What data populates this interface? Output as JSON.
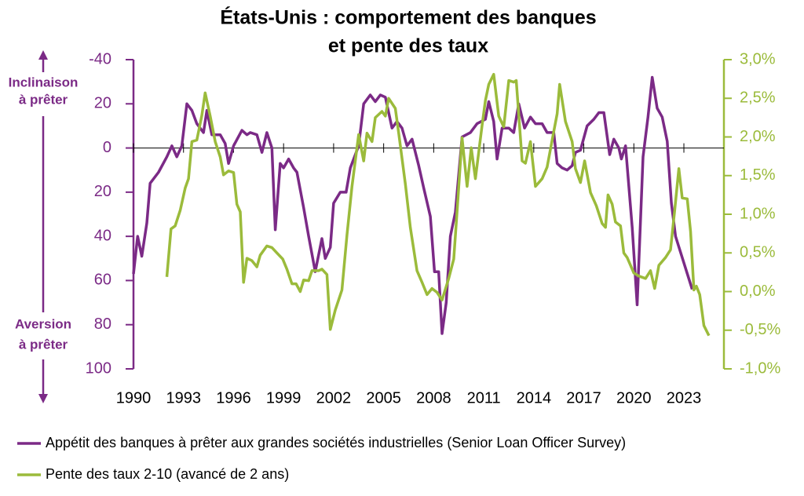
{
  "chart_data": {
    "type": "line",
    "title": [
      "États-Unis : comportement des banques",
      "et pente des taux"
    ],
    "annotations": [
      [
        "Inclinaison",
        "à prêter"
      ],
      [
        "Aversion",
        "à prêter"
      ]
    ],
    "xlim": [
      1990,
      2025.4
    ],
    "xticks": [
      1990,
      1993,
      1996,
      1999,
      2002,
      2005,
      2008,
      2011,
      2014,
      2017,
      2020,
      2023
    ],
    "ylim": [
      -40,
      100
    ],
    "y_inverted": true,
    "yticks": [
      -40,
      {
        "value": -20,
        "label": "20"
      },
      0,
      20,
      40,
      60,
      80,
      100
    ],
    "y_color": "#7b2a86",
    "y2lim": [
      -1.0,
      3.0
    ],
    "y2ticks": [
      {
        "value": -1.0,
        "label": "-1,0%"
      },
      {
        "value": -0.5,
        "label": "-0,5%"
      },
      {
        "value": 0.0,
        "label": "0,0%"
      },
      {
        "value": 0.5,
        "label": "0,5%"
      },
      {
        "value": 1.0,
        "label": "1,0%"
      },
      {
        "value": 1.5,
        "label": "1,5%"
      },
      {
        "value": 2.0,
        "label": "2,0%"
      },
      {
        "value": 2.5,
        "label": "2,5%"
      },
      {
        "value": 3.0,
        "label": "3,0%"
      }
    ],
    "y2_color": "#9bbb3b",
    "zero_line": true,
    "series": [
      {
        "name": "Appétit des banques à prêter aux grandes sociétés industrielles (Senior Loan Officer Survey)",
        "color": "#7b2a86",
        "x": [
          1990.0,
          1990.25,
          1990.5,
          1990.8,
          1991.0,
          1991.5,
          1992.0,
          1992.3,
          1992.6,
          1992.9,
          1993.2,
          1993.5,
          1993.8,
          1994.2,
          1994.4,
          1994.7,
          1995.2,
          1995.5,
          1995.7,
          1996.0,
          1996.5,
          1996.8,
          1997.0,
          1997.4,
          1997.7,
          1998.0,
          1998.3,
          1998.5,
          1998.8,
          1999.0,
          1999.3,
          1999.6,
          1999.8,
          2000.2,
          2000.5,
          2000.9,
          2001.3,
          2001.5,
          2001.8,
          2002.0,
          2002.4,
          2002.75,
          2003.0,
          2003.5,
          2003.8,
          2004.2,
          2004.5,
          2004.8,
          2005.1,
          2005.5,
          2005.8,
          2006.1,
          2006.4,
          2006.7,
          2007.1,
          2007.4,
          2007.8,
          2008.05,
          2008.3,
          2008.5,
          2008.75,
          2009.0,
          2009.3,
          2009.7,
          2010.2,
          2010.6,
          2011.1,
          2011.3,
          2011.6,
          2011.8,
          2012.1,
          2012.5,
          2012.8,
          2013.1,
          2013.45,
          2013.8,
          2014.1,
          2014.5,
          2014.8,
          2015.2,
          2015.4,
          2015.7,
          2016.0,
          2016.3,
          2016.5,
          2016.8,
          2017.2,
          2017.6,
          2017.9,
          2018.2,
          2018.55,
          2018.8,
          2019.1,
          2019.25,
          2019.5,
          2019.9,
          2020.2,
          2020.55,
          2020.85,
          2021.1,
          2021.4,
          2021.7,
          2022.0,
          2022.25,
          2022.5,
          2023.5
        ],
        "values": [
          57,
          40,
          49,
          34,
          16,
          11,
          4,
          -1,
          4,
          -1,
          -20,
          -17,
          -11,
          -7,
          -17,
          -6,
          -6,
          -2,
          7,
          -1,
          -8,
          -6,
          -7,
          -6,
          2,
          -7,
          0,
          37,
          7,
          9,
          5,
          9,
          11,
          27,
          40,
          56,
          41,
          50,
          45,
          25,
          20,
          20,
          9,
          -1,
          -20,
          -24,
          -21,
          -24,
          -23,
          -9,
          -12,
          -9,
          -1,
          -4,
          8,
          18,
          31,
          56,
          56,
          84,
          70,
          40,
          29,
          -5,
          -7,
          -11,
          -13,
          -21,
          -12,
          5,
          -9,
          -9,
          -7,
          -20,
          -9,
          -14,
          -11,
          -11,
          -7,
          -7,
          7,
          9,
          10,
          8,
          2,
          1,
          -10,
          -13,
          -16,
          -16,
          3,
          -4,
          0,
          5,
          -1,
          36,
          71,
          4,
          -14,
          -32,
          -18,
          -14,
          -3,
          25,
          40,
          64
        ]
      },
      {
        "name": "Pente des taux 2-10 (avancé de 2 ans)",
        "color": "#9bbb3b",
        "axis": "y2",
        "x": [
          1992.0,
          1992.25,
          1992.5,
          1992.8,
          1993.1,
          1993.3,
          1993.5,
          1993.8,
          1994.1,
          1994.3,
          1994.6,
          1994.9,
          1995.2,
          1995.4,
          1995.7,
          1996.0,
          1996.2,
          1996.4,
          1996.6,
          1996.8,
          1997.1,
          1997.4,
          1997.6,
          1998.0,
          1998.3,
          1998.6,
          1998.95,
          1999.2,
          1999.5,
          1999.75,
          2000.0,
          2000.2,
          2000.5,
          2000.7,
          2001.1,
          2001.3,
          2001.6,
          2001.8,
          2002.1,
          2002.5,
          2002.8,
          2003.1,
          2003.5,
          2003.8,
          2004.0,
          2004.3,
          2004.5,
          2004.9,
          2005.1,
          2005.3,
          2005.7,
          2005.9,
          2006.3,
          2006.6,
          2007.0,
          2007.3,
          2007.6,
          2007.9,
          2008.2,
          2008.5,
          2008.9,
          2009.2,
          2009.4,
          2009.7,
          2010.0,
          2010.25,
          2010.5,
          2010.9,
          2011.1,
          2011.3,
          2011.6,
          2011.9,
          2012.2,
          2012.5,
          2012.8,
          2012.95,
          2013.3,
          2013.5,
          2013.8,
          2014.1,
          2014.5,
          2014.8,
          2015.2,
          2015.4,
          2015.55,
          2015.9,
          2016.3,
          2016.5,
          2016.8,
          2017.05,
          2017.4,
          2017.75,
          2018.1,
          2018.3,
          2018.45,
          2018.7,
          2018.9,
          2019.2,
          2019.4,
          2019.6,
          2020.0,
          2020.3,
          2020.7,
          2021.0,
          2021.25,
          2021.5,
          2021.9,
          2022.2,
          2022.45,
          2022.7,
          2022.9,
          2023.2,
          2023.4,
          2023.6,
          2023.75,
          2023.95,
          2024.2,
          2024.5
        ],
        "values": [
          0.19,
          0.81,
          0.85,
          1.05,
          1.34,
          1.46,
          1.94,
          1.96,
          2.28,
          2.57,
          2.27,
          1.94,
          1.74,
          1.51,
          1.56,
          1.54,
          1.13,
          1.03,
          0.12,
          0.43,
          0.4,
          0.32,
          0.47,
          0.59,
          0.57,
          0.5,
          0.42,
          0.29,
          0.1,
          0.1,
          0.0,
          0.15,
          0.14,
          0.27,
          0.27,
          0.29,
          0.22,
          -0.49,
          -0.24,
          0.02,
          0.73,
          1.36,
          2.03,
          1.69,
          2.05,
          1.94,
          2.25,
          2.33,
          2.27,
          2.5,
          2.37,
          2.05,
          1.39,
          0.83,
          0.27,
          0.12,
          -0.04,
          0.04,
          -0.01,
          -0.11,
          0.17,
          0.42,
          1.03,
          1.99,
          1.36,
          1.86,
          1.46,
          2.15,
          2.47,
          2.68,
          2.81,
          2.27,
          2.13,
          2.73,
          2.71,
          2.73,
          1.69,
          1.66,
          1.94,
          1.36,
          1.46,
          1.61,
          2.07,
          2.3,
          2.68,
          2.2,
          1.94,
          1.59,
          1.41,
          1.69,
          1.28,
          1.11,
          0.88,
          0.83,
          1.25,
          1.13,
          0.9,
          0.85,
          0.5,
          0.44,
          0.24,
          0.2,
          0.17,
          0.27,
          0.04,
          0.34,
          0.44,
          0.54,
          1.05,
          1.59,
          1.21,
          1.2,
          0.78,
          0.02,
          0.07,
          -0.04,
          -0.44,
          -0.57
        ]
      }
    ]
  }
}
